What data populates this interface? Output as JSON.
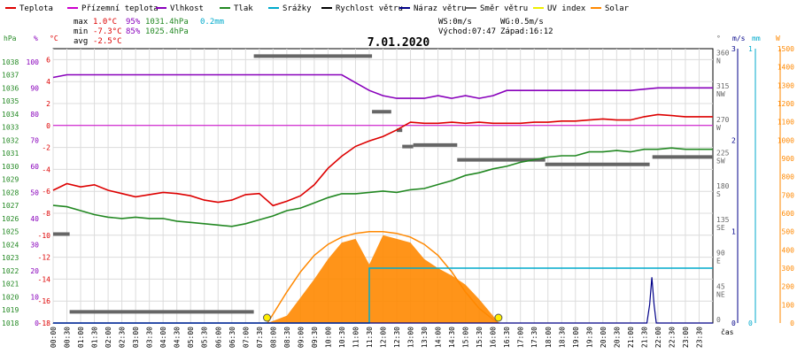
{
  "chart_data": {
    "type": "line",
    "title": "7.01.2020",
    "legend": [
      {
        "name": "Teplota",
        "color": "#dd0000"
      },
      {
        "name": "Přízemní teplota",
        "color": "#cc00cc"
      },
      {
        "name": "Vlhkost",
        "color": "#8800bb"
      },
      {
        "name": "Tlak",
        "color": "#228822"
      },
      {
        "name": "Srážky",
        "color": "#00aacc"
      },
      {
        "name": "Rychlost větru",
        "color": "#000000"
      },
      {
        "name": "Náraz větru",
        "color": "#000088"
      },
      {
        "name": "Směr větru",
        "color": "#666666"
      },
      {
        "name": "UV index",
        "color": "#eeee00"
      },
      {
        "name": "Solar",
        "color": "#ff8800"
      }
    ],
    "stats": {
      "max_label": "max",
      "max_temp": "1.0°C",
      "max_hum": "95%",
      "max_press": "1031.4hPa",
      "max_rain": "0.2mm",
      "min_label": "min",
      "min_temp": "-7.3°C",
      "min_hum": "85%",
      "min_press": "1025.4hPa",
      "avg_label": "avg",
      "avg_temp": "-2.5°C",
      "ws": "WS:0m/s",
      "wg": "WG:0.5m/s",
      "sunrise": "Východ:07:47",
      "sunset": "Západ:16:12"
    },
    "axis_units": {
      "press": "hPa",
      "hum": "%",
      "temp": "°C",
      "dir": "°",
      "wind": "m/s",
      "rain": "mm",
      "solar": "W",
      "time": "čas"
    },
    "press_ticks": [
      1018,
      1019,
      1020,
      1021,
      1022,
      1023,
      1024,
      1025,
      1026,
      1027,
      1028,
      1029,
      1030,
      1031,
      1032,
      1033,
      1034,
      1035,
      1036,
      1037,
      1038
    ],
    "hum_ticks": [
      0,
      10,
      20,
      30,
      40,
      50,
      60,
      70,
      80,
      90,
      100
    ],
    "temp_ticks": [
      -18,
      -16,
      -14,
      -12,
      -10,
      -8,
      -6,
      -4,
      -2,
      0,
      2,
      4,
      6
    ],
    "dir_ticks": [
      {
        "value": 360,
        "label": "N"
      },
      {
        "value": 315,
        "label": "NW"
      },
      {
        "value": 270,
        "label": "W"
      },
      {
        "value": 225,
        "label": "SW"
      },
      {
        "value": 180,
        "label": "S"
      },
      {
        "value": 135,
        "label": "SE"
      },
      {
        "value": 90,
        "label": "E"
      },
      {
        "value": 45,
        "label": "NE"
      },
      {
        "value": 0,
        "label": ""
      }
    ],
    "wind_ticks": [
      0,
      1,
      2,
      3
    ],
    "rain_ticks": [
      0,
      1
    ],
    "solar_ticks": [
      0,
      100,
      200,
      300,
      400,
      500,
      600,
      700,
      800,
      900,
      1000,
      1100,
      1200,
      1300,
      1400,
      1500
    ],
    "x_ticks": [
      "00:00",
      "00:30",
      "01:00",
      "01:30",
      "02:00",
      "02:30",
      "03:00",
      "03:30",
      "04:00",
      "04:30",
      "05:00",
      "05:30",
      "06:00",
      "06:30",
      "07:00",
      "07:30",
      "08:00",
      "08:30",
      "09:00",
      "09:30",
      "10:00",
      "10:30",
      "11:00",
      "11:30",
      "12:00",
      "12:30",
      "13:00",
      "13:30",
      "14:00",
      "14:30",
      "15:00",
      "15:30",
      "16:00",
      "16:30",
      "17:00",
      "17:30",
      "18:00",
      "18:30",
      "19:00",
      "19:30",
      "20:00",
      "20:30",
      "21:00",
      "21:30",
      "22:00",
      "22:30",
      "23:00",
      "23:30"
    ],
    "series": [
      {
        "name": "Teplota",
        "axis": "temp",
        "x": [
          0,
          0.5,
          1,
          1.5,
          2,
          2.5,
          3,
          3.5,
          4,
          4.5,
          5,
          5.5,
          6,
          6.5,
          7,
          7.5,
          8,
          8.5,
          9,
          9.5,
          10,
          10.5,
          11,
          11.5,
          12,
          12.5,
          13,
          13.5,
          14,
          14.5,
          15,
          15.5,
          16,
          16.5,
          17,
          17.5,
          18,
          18.5,
          19,
          19.5,
          20,
          20.5,
          21,
          21.5,
          22,
          22.5,
          23,
          23.5,
          24
        ],
        "values": [
          -5.9,
          -5.3,
          -5.6,
          -5.4,
          -5.9,
          -6.2,
          -6.5,
          -6.3,
          -6.1,
          -6.2,
          -6.4,
          -6.8,
          -7.0,
          -6.8,
          -6.3,
          -6.2,
          -7.3,
          -6.9,
          -6.4,
          -5.4,
          -3.9,
          -2.8,
          -1.9,
          -1.4,
          -1.0,
          -0.4,
          0.3,
          0.2,
          0.2,
          0.3,
          0.2,
          0.3,
          0.2,
          0.2,
          0.2,
          0.3,
          0.3,
          0.4,
          0.4,
          0.5,
          0.6,
          0.5,
          0.5,
          0.8,
          1.0,
          0.9,
          0.8,
          0.8,
          0.8
        ]
      },
      {
        "name": "Přízemní teplota",
        "axis": "temp",
        "x": [
          0,
          24
        ],
        "values": [
          0,
          0
        ]
      },
      {
        "name": "Vlhkost",
        "axis": "hum",
        "x": [
          0,
          0.5,
          1,
          2,
          3,
          4,
          5,
          6,
          7,
          8,
          8.5,
          9,
          9.5,
          10,
          10.5,
          11,
          11.5,
          12,
          12.5,
          13,
          13.5,
          14,
          14.5,
          15,
          15.5,
          16,
          16.5,
          17,
          18,
          19,
          20,
          21,
          22,
          23,
          24
        ],
        "values": [
          94,
          95,
          95,
          95,
          95,
          95,
          95,
          95,
          95,
          95,
          95,
          95,
          95,
          95,
          95,
          92,
          89,
          87,
          86,
          86,
          86,
          87,
          86,
          87,
          86,
          87,
          89,
          89,
          89,
          89,
          89,
          89,
          90,
          90,
          90
        ]
      },
      {
        "name": "Tlak",
        "axis": "press",
        "x": [
          0,
          0.5,
          1,
          1.5,
          2,
          2.5,
          3,
          3.5,
          4,
          4.5,
          5,
          5.5,
          6,
          6.5,
          7,
          7.5,
          8,
          8.5,
          9,
          9.5,
          10,
          10.5,
          11,
          11.5,
          12,
          12.5,
          13,
          13.5,
          14,
          14.5,
          15,
          15.5,
          16,
          16.5,
          17,
          17.5,
          18,
          18.5,
          19,
          19.5,
          20,
          20.5,
          21,
          21.5,
          22,
          22.5,
          23,
          23.5,
          24
        ],
        "values": [
          1027.0,
          1026.9,
          1026.6,
          1026.3,
          1026.1,
          1026.0,
          1026.1,
          1026.0,
          1026.0,
          1025.8,
          1025.7,
          1025.6,
          1025.5,
          1025.4,
          1025.6,
          1025.9,
          1026.2,
          1026.6,
          1026.8,
          1027.2,
          1027.6,
          1027.9,
          1027.9,
          1028.0,
          1028.1,
          1028.0,
          1028.2,
          1028.3,
          1028.6,
          1028.9,
          1029.3,
          1029.5,
          1029.8,
          1030.0,
          1030.3,
          1030.5,
          1030.7,
          1030.8,
          1030.8,
          1031.1,
          1031.1,
          1031.2,
          1031.1,
          1031.3,
          1031.3,
          1031.4,
          1031.3,
          1031.3,
          1031.3
        ]
      },
      {
        "name": "Srážky",
        "axis": "rain",
        "x": [
          0,
          11.5,
          11.5,
          11.6,
          24
        ],
        "values": [
          0,
          0,
          0.2,
          0.2,
          0.2
        ]
      },
      {
        "name": "Náraz větru",
        "axis": "wind",
        "x": [
          0,
          21.6,
          21.7,
          21.78,
          21.86,
          21.94,
          24
        ],
        "values": [
          0,
          0,
          0.2,
          0.5,
          0.2,
          0,
          0
        ]
      },
      {
        "name": "Solar",
        "axis": "solar",
        "x": [
          7.8,
          8.5,
          9,
          9.5,
          10,
          10.5,
          11,
          11.5,
          12,
          12.5,
          13,
          13.5,
          14,
          14.5,
          15,
          15.5,
          16,
          16.2
        ],
        "values": [
          0,
          40,
          140,
          240,
          350,
          440,
          460,
          320,
          480,
          460,
          440,
          350,
          300,
          260,
          210,
          130,
          40,
          0
        ]
      },
      {
        "name": "Solar (theoretical)",
        "axis": "solar",
        "x": [
          7.8,
          8.5,
          9,
          9.5,
          10,
          10.5,
          11,
          11.5,
          12,
          12.5,
          13,
          13.5,
          14,
          14.5,
          15,
          15.5,
          16,
          16.2
        ],
        "values": [
          0,
          170,
          280,
          370,
          430,
          470,
          490,
          500,
          500,
          490,
          470,
          430,
          370,
          280,
          170,
          80,
          20,
          0
        ]
      }
    ],
    "wind_dir_segments": [
      {
        "x1": 0.0,
        "x2": 0.6,
        "value": 120
      },
      {
        "x1": 0.6,
        "x2": 7.3,
        "value": 15
      },
      {
        "x1": 7.3,
        "x2": 11.6,
        "value": 360
      },
      {
        "x1": 11.6,
        "x2": 12.3,
        "value": 285
      },
      {
        "x1": 12.5,
        "x2": 12.7,
        "value": 260
      },
      {
        "x1": 12.7,
        "x2": 13.1,
        "value": 238
      },
      {
        "x1": 13.1,
        "x2": 14.7,
        "value": 240
      },
      {
        "x1": 14.7,
        "x2": 17.9,
        "value": 220
      },
      {
        "x1": 17.9,
        "x2": 21.7,
        "value": 214
      },
      {
        "x1": 21.8,
        "x2": 24.0,
        "value": 224
      }
    ],
    "sun_markers": [
      {
        "time": 7.78,
        "label": "sunrise"
      },
      {
        "time": 16.2,
        "label": "sunset"
      }
    ],
    "xlim": [
      0,
      24
    ],
    "ylim_temp": [
      -18,
      7
    ],
    "ylim_hum": [
      0,
      105
    ],
    "ylim_press": [
      1018,
      1039
    ],
    "ylim_dir": [
      0,
      370
    ],
    "ylim_wind": [
      0,
      3
    ],
    "ylim_rain": [
      0,
      1
    ],
    "ylim_solar": [
      0,
      1500
    ],
    "grid": true
  }
}
